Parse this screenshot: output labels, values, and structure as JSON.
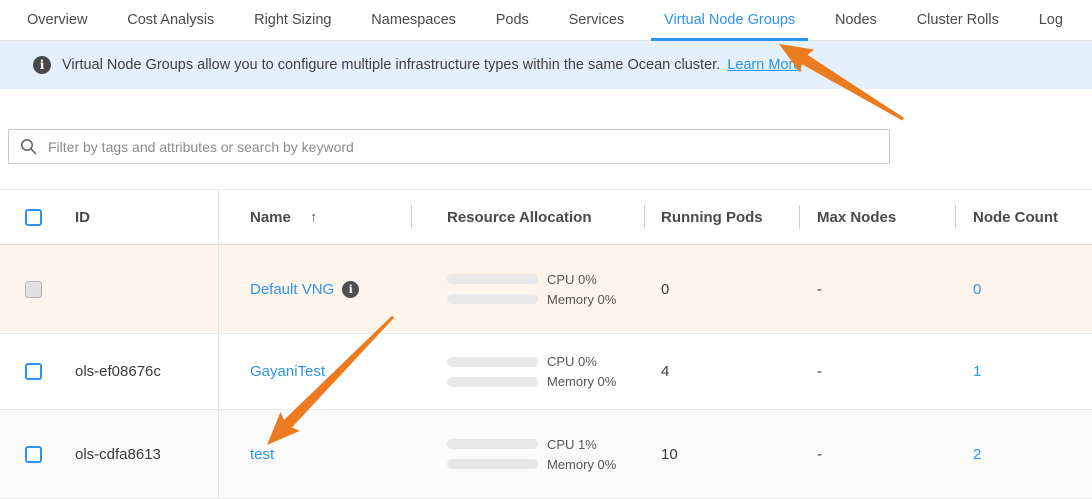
{
  "tabs": {
    "items": [
      {
        "label": "Overview",
        "active": false
      },
      {
        "label": "Cost Analysis",
        "active": false
      },
      {
        "label": "Right Sizing",
        "active": false
      },
      {
        "label": "Namespaces",
        "active": false
      },
      {
        "label": "Pods",
        "active": false
      },
      {
        "label": "Services",
        "active": false
      },
      {
        "label": "Virtual Node Groups",
        "active": true
      },
      {
        "label": "Nodes",
        "active": false
      },
      {
        "label": "Cluster Rolls",
        "active": false
      },
      {
        "label": "Log",
        "active": false
      }
    ]
  },
  "banner": {
    "text": "Virtual Node Groups allow you to configure multiple infrastructure types within the same Ocean cluster.",
    "link_label": "Learn More"
  },
  "search": {
    "placeholder": "Filter by tags and attributes or search by keyword"
  },
  "table": {
    "headers": {
      "id": "ID",
      "name": "Name",
      "sort_indicator": "↑",
      "resource_allocation": "Resource Allocation",
      "running_pods": "Running Pods",
      "max_nodes": "Max Nodes",
      "node_count": "Node Count"
    },
    "rows": [
      {
        "id": "",
        "name": "Default VNG",
        "has_info_icon": true,
        "highlighted": true,
        "checkbox_disabled": true,
        "cpu_label": "CPU 0%",
        "cpu_pct": 0,
        "memory_label": "Memory 0%",
        "memory_pct": 0,
        "running_pods": "0",
        "max_nodes": "-",
        "node_count": "0"
      },
      {
        "id": "ols-ef08676c",
        "name": "GayaniTest",
        "has_info_icon": false,
        "highlighted": false,
        "checkbox_disabled": false,
        "cpu_label": "CPU 0%",
        "cpu_pct": 0,
        "memory_label": "Memory 0%",
        "memory_pct": 0,
        "running_pods": "4",
        "max_nodes": "-",
        "node_count": "1"
      },
      {
        "id": "ols-cdfa8613",
        "name": "test",
        "has_info_icon": false,
        "highlighted": false,
        "checkbox_disabled": false,
        "cpu_label": "CPU 1%",
        "cpu_pct": 1,
        "memory_label": "Memory 0%",
        "memory_pct": 0,
        "running_pods": "10",
        "max_nodes": "-",
        "node_count": "2"
      }
    ]
  },
  "icons": {
    "info_glyph": "i"
  },
  "annotations": {
    "arrows": [
      {
        "points_to": "virtual-node-groups-tab"
      },
      {
        "points_to": "vng-name-link-test"
      }
    ]
  },
  "colors": {
    "accent_blue": "#2e93ee",
    "banner_bg": "#e4f1fc",
    "highlight_row_bg": "#fdf5eb",
    "arrow_orange": "#ec7a1f"
  }
}
